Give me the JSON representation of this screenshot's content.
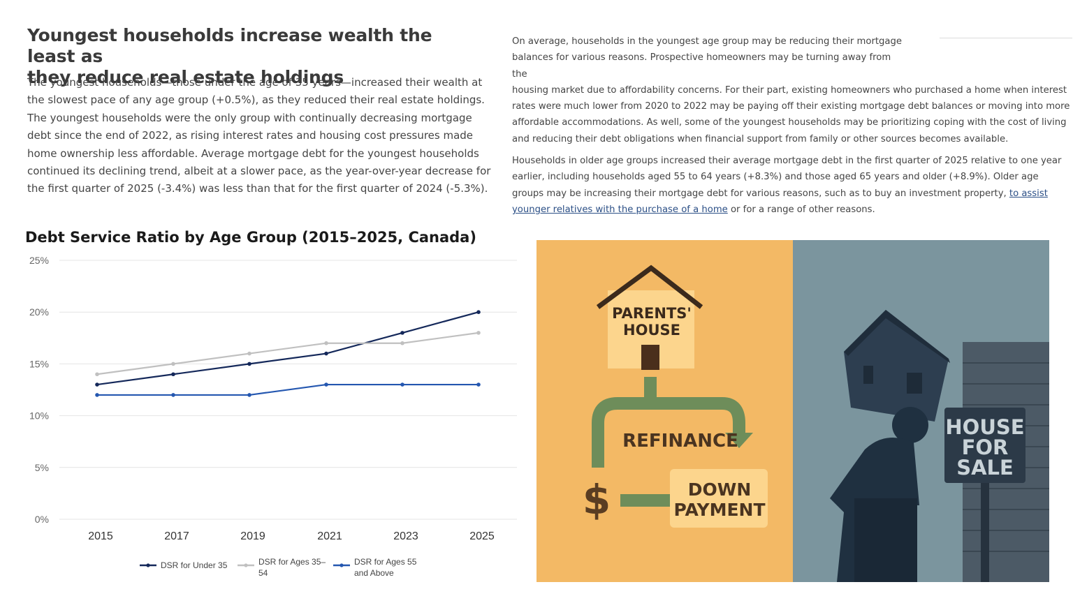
{
  "article": {
    "headline_line1": "Youngest households increase wealth the least as",
    "headline_line2": "they reduce real estate holdings",
    "left_paragraph": "The youngest households—those under the age of 35 years—increased their wealth at the slowest pace of any age group (+0.5%), as they reduced their real estate holdings. The youngest households were the only group with continually decreasing mortgage debt since the end of 2022, as rising interest rates and housing cost pressures made home ownership less affordable. Average mortgage debt for the youngest households continued its declining trend, albeit at a slower pace, as the year-over-year decrease for the first quarter of 2025 (-3.4%) was less than that for the first quarter of 2024 (-5.3%).",
    "right_paragraph1_narrow": "On average, households in the youngest age group may be reducing their mortgage balances for various reasons. Prospective homeowners may be turning away from the",
    "right_paragraph1_wide": "housing market due to affordability concerns. For their part, existing homeowners who purchased a home when interest rates were much lower from 2020 to 2022 may be paying off their existing mortgage debt balances or moving into more affordable accommodations. As well, some of the youngest households may be prioritizing coping with the cost of living and reducing their debt obligations when financial support from family or other sources becomes available.",
    "right_paragraph2_before": "Households in older age groups increased their average mortgage debt in the first quarter of 2025 relative to one year earlier, including households aged 55 to 64 years (+8.3%) and those aged 65 years and older (+8.9%). Older age groups may be increasing their mortgage debt for various reasons, such as to buy an investment property, ",
    "right_paragraph2_link": "to assist younger relatives with the purchase of a home",
    "right_paragraph2_after": " or for a range of other reasons."
  },
  "chart_data": {
    "type": "line",
    "title": "Debt Service Ratio by Age Group (2015–2025, Canada)",
    "x": [
      "2015",
      "2017",
      "2019",
      "2021",
      "2023",
      "2025"
    ],
    "ylim": [
      0,
      25
    ],
    "yticks": [
      "0%",
      "5%",
      "10%",
      "15%",
      "20%",
      "25%"
    ],
    "grid": true,
    "legend_position": "bottom",
    "series": [
      {
        "name": "DSR for Under 35",
        "values": [
          13,
          14,
          15,
          16,
          18,
          20
        ],
        "color": "#14285a"
      },
      {
        "name": "DSR for Ages 35–54",
        "values": [
          14,
          15,
          16,
          17,
          17,
          18
        ],
        "color": "#c0c0c0"
      },
      {
        "name": "DSR for Ages 55 and Above",
        "values": [
          12,
          12,
          12,
          13,
          13,
          13
        ],
        "color": "#2457b0"
      }
    ]
  },
  "illustration": {
    "parents_house_line1": "PARENTS'",
    "parents_house_line2": "HOUSE",
    "refinance": "REFINANCE",
    "dollar": "$",
    "down_payment_line1": "DOWN",
    "down_payment_line2": "PAYMENT",
    "sign_line1": "HOUSE",
    "sign_line2": "FOR",
    "sign_line3": "SALE",
    "colors": {
      "left_bg": "#f3b965",
      "right_bg": "#7b959e",
      "green": "#6e8d5a",
      "dark": "#1f3040"
    }
  }
}
